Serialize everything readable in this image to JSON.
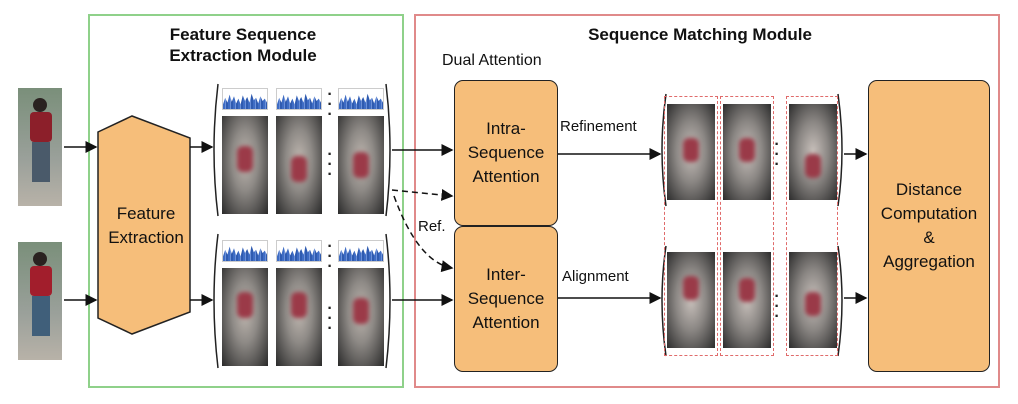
{
  "modules": {
    "feature_extraction_title_line1": "Feature Sequence",
    "feature_extraction_title_line2": "Extraction Module",
    "sequence_matching_title": "Sequence Matching Module"
  },
  "labels": {
    "dual_attention": "Dual Attention",
    "refinement": "Refinement",
    "alignment": "Alignment",
    "ref": "Ref."
  },
  "blocks": {
    "feature_extraction_line1": "Feature",
    "feature_extraction_line2": "Extraction",
    "intra_line1": "Intra-",
    "intra_line2": "Sequence",
    "intra_line3": "Attention",
    "inter_line1": "Inter-",
    "inter_line2": "Sequence",
    "inter_line3": "Attention",
    "distance_line1": "Distance",
    "distance_line2": "Computation",
    "distance_line3": "&",
    "distance_line4": "Aggregation"
  },
  "ellipsis": "·\n·\n·",
  "colors": {
    "green_border": "#8fd18a",
    "red_border": "#e08a8a",
    "block_fill": "#f6be7a",
    "histogram": "#3e6cc4"
  }
}
